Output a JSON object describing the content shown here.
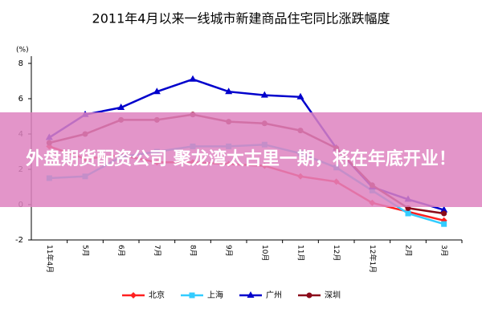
{
  "chart_data": {
    "type": "line",
    "title": "2011年4月以来一线城市新建商品住宅同比涨跌幅度",
    "y_unit": "(%)",
    "categories": [
      "11年4月",
      "5月",
      "6月",
      "7月",
      "8月",
      "9月",
      "10月",
      "11月",
      "12月",
      "12年1月",
      "2月",
      "3月"
    ],
    "series": [
      {
        "name": "北京",
        "color": "#ff2020",
        "marker": "diamond",
        "values": [
          3.3,
          2.6,
          2.8,
          2.4,
          2.4,
          2.3,
          2.2,
          1.6,
          1.3,
          0.1,
          -0.4,
          -0.9
        ]
      },
      {
        "name": "上海",
        "color": "#33ccff",
        "marker": "square",
        "values": [
          1.5,
          1.6,
          2.7,
          3.0,
          3.3,
          3.3,
          3.4,
          2.9,
          2.1,
          0.8,
          -0.5,
          -1.1
        ]
      },
      {
        "name": "广州",
        "color": "#0000cc",
        "marker": "triangle",
        "values": [
          3.8,
          5.1,
          5.5,
          6.4,
          7.1,
          6.4,
          6.2,
          6.1,
          3.2,
          1.0,
          0.3,
          -0.3
        ]
      },
      {
        "name": "深圳",
        "color": "#8b0a1a",
        "marker": "circle",
        "values": [
          3.5,
          4.0,
          4.8,
          4.8,
          5.1,
          4.7,
          4.6,
          4.2,
          3.2,
          1.1,
          -0.2,
          -0.5
        ]
      }
    ],
    "ylim": [
      -2,
      8
    ],
    "yticks": [
      -2,
      0,
      2,
      4,
      6,
      8
    ],
    "grid": false
  },
  "overlay_text": "外盘期货配资公司 聚龙湾太古里一期，将在年底开业！"
}
